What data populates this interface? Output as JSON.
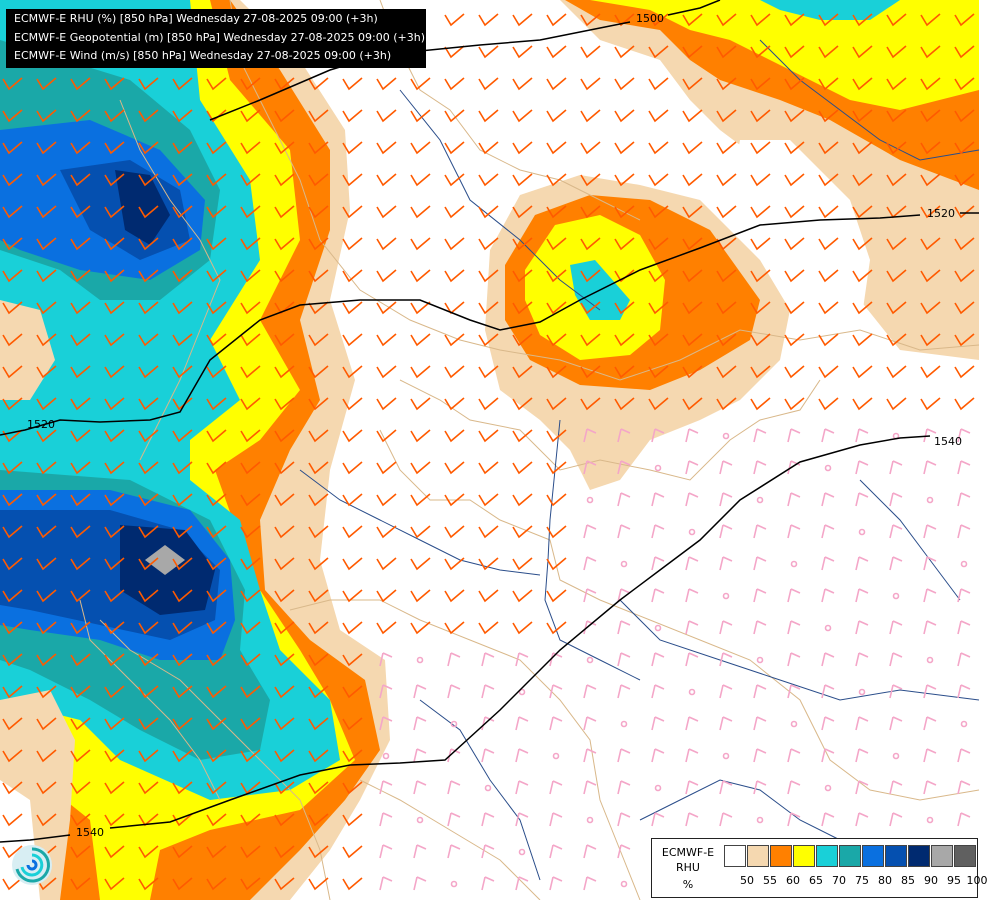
{
  "header": {
    "lines": [
      "ECMWF-E RHU (%) [850 hPa] Wednesday 27-08-2025 09:00 (+3h)",
      "ECMWF-E Geopotential (m) [850 hPa] Wednesday 27-08-2025 09:00 (+3h)",
      "ECMWF-E Wind (m/s) [850 hPa] Wednesday 27-08-2025 09:00 (+3h)"
    ]
  },
  "contours": {
    "labels": [
      "1500",
      "1520",
      "1520",
      "1540",
      "1540"
    ]
  },
  "legend": {
    "title_line1": "ECMWF-E",
    "title_line2": "RHU",
    "unit": "%",
    "ticks": [
      "50",
      "55",
      "60",
      "65",
      "70",
      "75",
      "80",
      "85",
      "90",
      "95",
      "100"
    ],
    "colors": [
      "#ffffff",
      "#f5d8b0",
      "#ff8000",
      "#ffff00",
      "#19d0d8",
      "#1aa8a8",
      "#0a70e0",
      "#0550b0",
      "#002a70",
      "#a8a8a8",
      "#606060"
    ]
  },
  "colors": {
    "wind_moist": "#ff5a00",
    "wind_dry": "#f4a6c8",
    "borders": "#d9b88a",
    "rivers": "#2a4d8a",
    "geopotential": "#000000"
  }
}
